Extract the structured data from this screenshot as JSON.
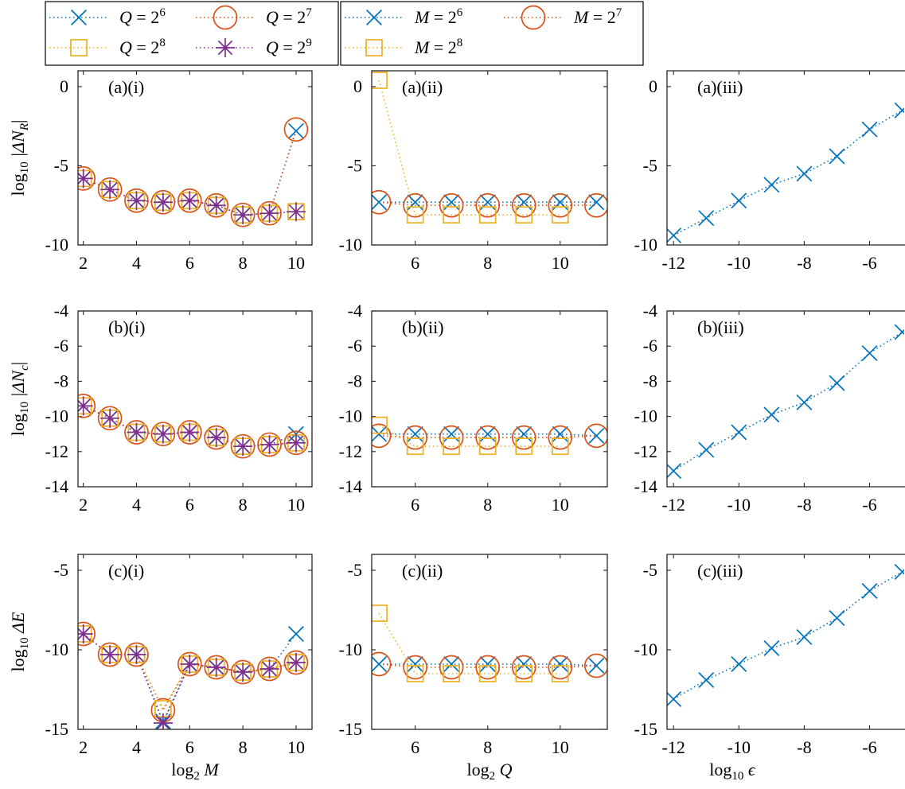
{
  "colors": {
    "blue": "#0072BD",
    "red": "#D95319",
    "yellow": "#EDB120",
    "purple": "#7E2F8E"
  },
  "legends": [
    {
      "entries": [
        {
          "text": "Q = 2",
          "sup": "6",
          "color": "#0072BD",
          "marker": "x"
        },
        {
          "text": "Q = 2",
          "sup": "7",
          "color": "#D95319",
          "marker": "o"
        },
        {
          "text": "Q = 2",
          "sup": "8",
          "color": "#EDB120",
          "marker": "s"
        },
        {
          "text": "Q = 2",
          "sup": "9",
          "color": "#7E2F8E",
          "marker": "*"
        }
      ]
    },
    {
      "entries": [
        {
          "text": "M = 2",
          "sup": "6",
          "color": "#0072BD",
          "marker": "x"
        },
        {
          "text": "M = 2",
          "sup": "7",
          "color": "#D95319",
          "marker": "o"
        },
        {
          "text": "M = 2",
          "sup": "8",
          "color": "#EDB120",
          "marker": "s"
        }
      ]
    }
  ],
  "ylabels": [
    {
      "prefix": "log",
      "sub": "10",
      "rest": " |ΔN",
      "sub2": "R",
      "end": "|"
    },
    {
      "prefix": "log",
      "sub": "10",
      "rest": " |ΔN",
      "sub2": "c",
      "end": "|"
    },
    {
      "prefix": "log",
      "sub": "10",
      "rest": " ΔE",
      "sub2": "",
      "end": ""
    }
  ],
  "xlabels": [
    {
      "prefix": "log",
      "sub": "2",
      "rest": " M"
    },
    {
      "prefix": "log",
      "sub": "2",
      "rest": " Q"
    },
    {
      "prefix": "log",
      "sub": "10",
      "rest": " ϵ"
    }
  ],
  "chart_data": [
    {
      "type": "line",
      "panel": "(a)(i)",
      "title": "(a)(i)",
      "xlim": [
        1.8,
        10.6
      ],
      "ylim": [
        -10,
        1
      ],
      "xticks": [
        2,
        4,
        6,
        8,
        10
      ],
      "yticks": [
        -10,
        -5,
        0
      ],
      "ytick_labels": [
        "-10",
        "-5",
        "0"
      ],
      "x": [
        2,
        3,
        4,
        5,
        6,
        7,
        8,
        9,
        10
      ],
      "series": [
        {
          "name": "Q = 2^6",
          "marker": "x",
          "color": "#0072BD",
          "values": [
            -5.8,
            -6.5,
            -7.2,
            -7.3,
            -7.2,
            -7.5,
            -8.1,
            -8.0,
            -2.8
          ]
        },
        {
          "name": "Q = 2^7",
          "marker": "o",
          "color": "#D95319",
          "values": [
            -5.8,
            -6.5,
            -7.2,
            -7.3,
            -7.2,
            -7.5,
            -8.1,
            -8.0,
            -2.7
          ]
        },
        {
          "name": "Q = 2^8",
          "marker": "s",
          "color": "#EDB120",
          "values": [
            -5.8,
            -6.5,
            -7.2,
            -7.3,
            -7.2,
            -7.5,
            -8.1,
            -8.0,
            -7.9
          ]
        },
        {
          "name": "Q = 2^9",
          "marker": "*",
          "color": "#7E2F8E",
          "values": [
            -5.8,
            -6.5,
            -7.2,
            -7.3,
            -7.2,
            -7.5,
            -8.1,
            -8.0,
            -7.9
          ]
        }
      ]
    },
    {
      "type": "line",
      "panel": "(a)(ii)",
      "title": "(a)(ii)",
      "xlim": [
        4.8,
        11.3
      ],
      "ylim": [
        -10,
        1
      ],
      "xticks": [
        6,
        8,
        10
      ],
      "yticks": [
        -10,
        -5,
        0
      ],
      "ytick_labels": [
        "-10",
        "-5",
        "0"
      ],
      "x": [
        5,
        6,
        7,
        8,
        9,
        10,
        11
      ],
      "series": [
        {
          "name": "M = 2^6",
          "marker": "x",
          "color": "#0072BD",
          "values": [
            -7.3,
            -7.3,
            -7.3,
            -7.3,
            -7.3,
            -7.3,
            -7.3
          ]
        },
        {
          "name": "M = 2^7",
          "marker": "o",
          "color": "#D95319",
          "values": [
            -7.3,
            -7.5,
            -7.5,
            -7.5,
            -7.5,
            -7.5,
            -7.5
          ]
        },
        {
          "name": "M = 2^8",
          "marker": "s",
          "color": "#EDB120",
          "values": [
            0.4,
            -8.1,
            -8.1,
            -8.1,
            -8.1,
            -8.1,
            null
          ]
        }
      ]
    },
    {
      "type": "line",
      "panel": "(a)(iii)",
      "title": "(a)(iii)",
      "xlim": [
        -12.2,
        -4.6
      ],
      "ylim": [
        -10,
        1
      ],
      "xticks": [
        -12,
        -10,
        -8,
        -6
      ],
      "yticks": [
        -10,
        -5,
        0
      ],
      "ytick_labels": [
        "-10",
        "-5",
        "0"
      ],
      "x": [
        -12,
        -11,
        -10,
        -9,
        -8,
        -7,
        -6,
        -5
      ],
      "series": [
        {
          "name": "M = 2^6",
          "marker": "x",
          "color": "#0072BD",
          "values": [
            -9.4,
            -8.3,
            -7.2,
            -6.2,
            -5.5,
            -4.4,
            -2.7,
            -1.5
          ]
        }
      ]
    },
    {
      "type": "line",
      "panel": "(b)(i)",
      "title": "(b)(i)",
      "xlim": [
        1.8,
        10.6
      ],
      "ylim": [
        -14,
        -4
      ],
      "xticks": [
        2,
        4,
        6,
        8,
        10
      ],
      "yticks": [
        -14,
        -12,
        -10,
        -8,
        -6,
        -4
      ],
      "ytick_labels": [
        "-14",
        "-12",
        "-10",
        "-8",
        "-6",
        "-4"
      ],
      "x": [
        2,
        3,
        4,
        5,
        6,
        7,
        8,
        9,
        10
      ],
      "series": [
        {
          "name": "Q = 2^6",
          "marker": "x",
          "color": "#0072BD",
          "values": [
            -9.4,
            -10.1,
            -10.9,
            -11.0,
            -10.9,
            -11.2,
            -11.7,
            -11.6,
            -11.0
          ]
        },
        {
          "name": "Q = 2^7",
          "marker": "o",
          "color": "#D95319",
          "values": [
            -9.4,
            -10.1,
            -10.9,
            -11.0,
            -10.9,
            -11.2,
            -11.7,
            -11.6,
            -11.5
          ]
        },
        {
          "name": "Q = 2^8",
          "marker": "s",
          "color": "#EDB120",
          "values": [
            -9.4,
            -10.1,
            -10.9,
            -11.0,
            -10.9,
            -11.2,
            -11.7,
            -11.6,
            -11.5
          ]
        },
        {
          "name": "Q = 2^9",
          "marker": "*",
          "color": "#7E2F8E",
          "values": [
            -9.4,
            -10.1,
            -10.9,
            -11.0,
            -10.9,
            -11.2,
            -11.7,
            -11.6,
            -11.5
          ]
        }
      ]
    },
    {
      "type": "line",
      "panel": "(b)(ii)",
      "title": "(b)(ii)",
      "xlim": [
        4.8,
        11.3
      ],
      "ylim": [
        -14,
        -4
      ],
      "xticks": [
        6,
        8,
        10
      ],
      "yticks": [
        -14,
        -12,
        -10,
        -8,
        -6,
        -4
      ],
      "ytick_labels": [
        "-14",
        "-12",
        "-10",
        "-8",
        "-6",
        "-4"
      ],
      "x": [
        5,
        6,
        7,
        8,
        9,
        10,
        11
      ],
      "series": [
        {
          "name": "M = 2^6",
          "marker": "x",
          "color": "#0072BD",
          "values": [
            -11.0,
            -11.0,
            -11.0,
            -11.0,
            -11.0,
            -11.0,
            -11.1
          ]
        },
        {
          "name": "M = 2^7",
          "marker": "o",
          "color": "#D95319",
          "values": [
            -11.1,
            -11.2,
            -11.2,
            -11.2,
            -11.2,
            -11.2,
            -11.1
          ]
        },
        {
          "name": "M = 2^8",
          "marker": "s",
          "color": "#EDB120",
          "values": [
            -10.5,
            -11.7,
            -11.7,
            -11.7,
            -11.7,
            -11.7,
            null
          ]
        }
      ]
    },
    {
      "type": "line",
      "panel": "(b)(iii)",
      "title": "(b)(iii)",
      "xlim": [
        -12.2,
        -4.6
      ],
      "ylim": [
        -14,
        -4
      ],
      "xticks": [
        -12,
        -10,
        -8,
        -6
      ],
      "yticks": [
        -14,
        -12,
        -10,
        -8,
        -6,
        -4
      ],
      "ytick_labels": [
        "-14",
        "-12",
        "-10",
        "-8",
        "-6",
        "-4"
      ],
      "x": [
        -12,
        -11,
        -10,
        -9,
        -8,
        -7,
        -6,
        -5
      ],
      "series": [
        {
          "name": "M = 2^6",
          "marker": "x",
          "color": "#0072BD",
          "values": [
            -13.1,
            -11.9,
            -10.9,
            -9.9,
            -9.2,
            -8.1,
            -6.4,
            -5.2
          ]
        }
      ]
    },
    {
      "type": "line",
      "panel": "(c)(i)",
      "title": "(c)(i)",
      "xlim": [
        1.8,
        10.6
      ],
      "ylim": [
        -15,
        -4
      ],
      "xticks": [
        2,
        4,
        6,
        8,
        10
      ],
      "yticks": [
        -15,
        -10,
        -5
      ],
      "ytick_labels": [
        "-15",
        "-10",
        "-5"
      ],
      "x": [
        2,
        3,
        4,
        5,
        6,
        7,
        8,
        9,
        10
      ],
      "series": [
        {
          "name": "Q = 2^6",
          "marker": "x",
          "color": "#0072BD",
          "values": [
            -9.0,
            -10.3,
            -10.3,
            -14.5,
            -10.9,
            -11.1,
            -11.4,
            -11.2,
            -9.0
          ]
        },
        {
          "name": "Q = 2^7",
          "marker": "o",
          "color": "#D95319",
          "values": [
            -9.0,
            -10.3,
            -10.3,
            -13.8,
            -10.9,
            -11.1,
            -11.4,
            -11.2,
            -10.8
          ]
        },
        {
          "name": "Q = 2^8",
          "marker": "s",
          "color": "#EDB120",
          "values": [
            -9.0,
            -10.3,
            -10.3,
            -13.7,
            -10.9,
            -11.1,
            -11.4,
            -11.2,
            -10.8
          ]
        },
        {
          "name": "Q = 2^9",
          "marker": "*",
          "color": "#7E2F8E",
          "values": [
            -9.0,
            -10.3,
            -10.3,
            -14.6,
            -10.9,
            -11.1,
            -11.4,
            -11.2,
            -10.8
          ]
        }
      ]
    },
    {
      "type": "line",
      "panel": "(c)(ii)",
      "title": "(c)(ii)",
      "xlim": [
        4.8,
        11.3
      ],
      "ylim": [
        -15,
        -4
      ],
      "xticks": [
        6,
        8,
        10
      ],
      "yticks": [
        -15,
        -10,
        -5
      ],
      "ytick_labels": [
        "-15",
        "-10",
        "-5"
      ],
      "x": [
        5,
        6,
        7,
        8,
        9,
        10,
        11
      ],
      "series": [
        {
          "name": "M = 2^6",
          "marker": "x",
          "color": "#0072BD",
          "values": [
            -10.9,
            -10.9,
            -10.9,
            -10.9,
            -10.9,
            -10.9,
            -11.0
          ]
        },
        {
          "name": "M = 2^7",
          "marker": "o",
          "color": "#D95319",
          "values": [
            -10.9,
            -11.1,
            -11.1,
            -11.1,
            -11.1,
            -11.1,
            -11.0
          ]
        },
        {
          "name": "M = 2^8",
          "marker": "s",
          "color": "#EDB120",
          "values": [
            -7.7,
            -11.5,
            -11.5,
            -11.5,
            -11.5,
            -11.5,
            null
          ]
        }
      ]
    },
    {
      "type": "line",
      "panel": "(c)(iii)",
      "title": "(c)(iii)",
      "xlim": [
        -12.2,
        -4.6
      ],
      "ylim": [
        -15,
        -4
      ],
      "xticks": [
        -12,
        -10,
        -8,
        -6
      ],
      "yticks": [
        -15,
        -10,
        -5
      ],
      "ytick_labels": [
        "-15",
        "-10",
        "-5"
      ],
      "x": [
        -12,
        -11,
        -10,
        -9,
        -8,
        -7,
        -6,
        -5
      ],
      "series": [
        {
          "name": "M = 2^6",
          "marker": "x",
          "color": "#0072BD",
          "values": [
            -13.1,
            -11.9,
            -10.9,
            -9.9,
            -9.2,
            -8.0,
            -6.3,
            -5.1
          ]
        }
      ]
    }
  ]
}
